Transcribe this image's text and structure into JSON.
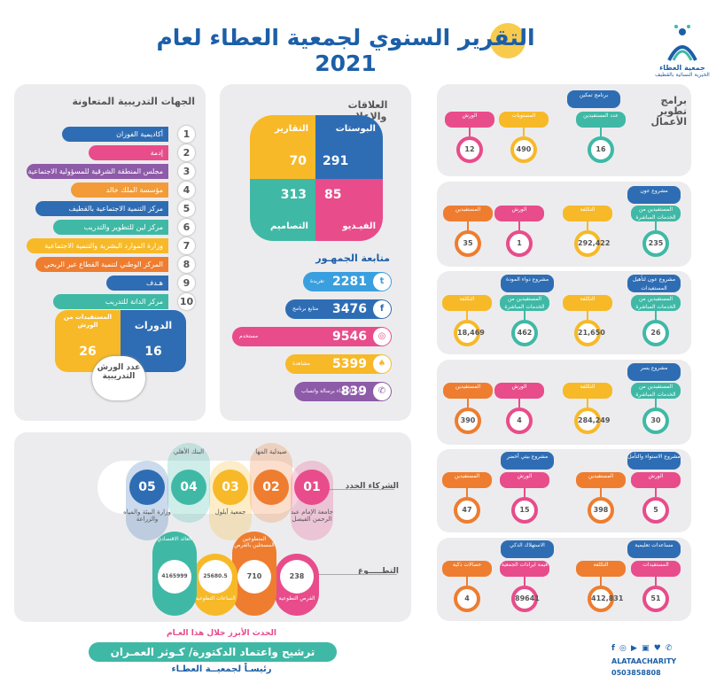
{
  "title": "التقرير السنوي لجمعية العطاء لعام 2021",
  "logo": {
    "name": "جمعية العطاء",
    "sub": "الخيرية النسائية بالقطيف"
  },
  "partners_panel": {
    "title": "الجهات التدريبية  المتعاونة",
    "items": [
      {
        "n": "1",
        "label": "أكاديمية الفوزان",
        "color": "#2e6db4"
      },
      {
        "n": "2",
        "label": "إدمة",
        "color": "#e84c8b"
      },
      {
        "n": "3",
        "label": "مجلس المنطقة الشرقية للمسؤولية الاجتماعية",
        "color": "#8e5ba8"
      },
      {
        "n": "4",
        "label": "مؤسسة الملك خالد",
        "color": "#f29b38"
      },
      {
        "n": "5",
        "label": "مركز التنمية الاجتماعية بالقطيف",
        "color": "#2e6db4"
      },
      {
        "n": "6",
        "label": "مركز لين للتطوير والتدريب",
        "color": "#3fb9a6"
      },
      {
        "n": "7",
        "label": "وزارة الموارد البشرية والتنمية الاجتماعية",
        "color": "#f7b928"
      },
      {
        "n": "8",
        "label": "المركز الوطني لتنمية القطاع غير الربحي",
        "color": "#ee7d30"
      },
      {
        "n": "9",
        "label": "هـدف",
        "color": "#2e6db4"
      },
      {
        "n": "10",
        "label": "مركز الدانة للتدريب",
        "color": "#3fb9a6"
      }
    ]
  },
  "courses": {
    "courses_label": "الدورات",
    "courses_value": "16",
    "workshops_beneficiaries_label": "المستفيدات من الورش",
    "workshops_beneficiaries_value": "26",
    "workshops_label": "عدد الورش التدريبية"
  },
  "media": {
    "title": "العلاقات والإعلام",
    "posts_label": "البوستات",
    "posts": "291",
    "reports_label": "التقارير",
    "reports": "70",
    "designs_label": "التصاميم",
    "designs": "313",
    "video_label": "الفيـديو",
    "video": "85"
  },
  "audience": {
    "title": "متابعة الجمهـور",
    "items": [
      {
        "value": "2281",
        "sub": "تغريدة",
        "icon": "twitter-icon",
        "glyph": "t",
        "color": "#3a9fde"
      },
      {
        "value": "3476",
        "sub": "متابع برنامج",
        "icon": "facebook-icon",
        "glyph": "f",
        "color": "#2e6db4"
      },
      {
        "value": "9546",
        "sub": "مستخدم",
        "icon": "instagram-icon",
        "glyph": "◎",
        "color": "#e84c8b"
      },
      {
        "value": "5399",
        "sub": "مشاهدة",
        "icon": "snapchat-icon",
        "glyph": "♠",
        "color": "#f7b928"
      },
      {
        "value": "839",
        "sub": "عدد الأعضاء برسالة واتساب",
        "icon": "whatsapp-icon",
        "glyph": "✆",
        "color": "#8e5ba8"
      }
    ]
  },
  "programs": {
    "title": "برامج تطوير الأعمال",
    "tamkeen": {
      "name": "برنامج تمكين",
      "items": [
        {
          "label": "عدد المستفيدين",
          "value": "16",
          "color": "#3fb9a6"
        },
        {
          "label": "المستويات",
          "value": "490",
          "color": "#f7b928"
        },
        {
          "label": "الورش",
          "value": "12",
          "color": "#e84c8b"
        }
      ]
    },
    "awn": {
      "name": "مشروع عون",
      "items": [
        {
          "label": "المستفيدين من الخدمات المباشرة",
          "value": "235",
          "color": "#3fb9a6"
        },
        {
          "label": "التكلفة",
          "value": "292,422",
          "color": "#f7b928"
        },
        {
          "label": "الورش",
          "value": "1",
          "color": "#e84c8b"
        },
        {
          "label": "المستفيدين",
          "value": "35",
          "color": "#ee7d30"
        }
      ]
    },
    "awn_rehab": {
      "name": "مشروع عون لتأهيل المستفيدات",
      "items": [
        {
          "label": "المستفيدين من الخدمات المباشرة",
          "value": "26",
          "color": "#3fb9a6"
        },
        {
          "label": "التكلفة",
          "value": "21,650",
          "color": "#f7b928"
        }
      ]
    },
    "dawa": {
      "name": "مشروع دواء المودة",
      "items": [
        {
          "label": "المستفيدين من الخدمات المباشرة",
          "value": "462",
          "color": "#3fb9a6"
        },
        {
          "label": "التكلفة",
          "value": "18,469",
          "color": "#f7b928"
        }
      ]
    },
    "yosr": {
      "name": "مشروع يسر",
      "items": [
        {
          "label": "المستفيدين من الخدمات المباشرة",
          "value": "30",
          "color": "#3fb9a6"
        },
        {
          "label": "التكلفة",
          "value": "284,249",
          "color": "#f7b928"
        },
        {
          "label": "الورش",
          "value": "4",
          "color": "#e84c8b"
        },
        {
          "label": "المستفيدين",
          "value": "390",
          "color": "#ee7d30"
        }
      ]
    },
    "istiwa": {
      "name": "مشروع الاستواء والتأمل",
      "items": [
        {
          "label": "الورش",
          "value": "5",
          "color": "#e84c8b"
        },
        {
          "label": "المستفيدين",
          "value": "398",
          "color": "#ee7d30"
        }
      ]
    },
    "green": {
      "name": "مشروع بيتي أخضر",
      "items": [
        {
          "label": "الورش",
          "value": "15",
          "color": "#e84c8b"
        },
        {
          "label": "المستفيدين",
          "value": "47",
          "color": "#ee7d30"
        }
      ]
    },
    "edu": {
      "name": "مساعدات تعليمية",
      "items": [
        {
          "label": "المستفيدات",
          "value": "51",
          "color": "#e84c8b"
        },
        {
          "label": "التكلفة",
          "value": "412,831",
          "color": "#ee7d30"
        }
      ]
    },
    "smart": {
      "name": "الاستهلاك الذكي",
      "items": [
        {
          "label": "قيمة ايرادات الجمعية",
          "value": "89641",
          "color": "#e84c8b"
        },
        {
          "label": "حصالات ذكية",
          "value": "4",
          "color": "#ee7d30"
        }
      ]
    }
  },
  "new_partners": {
    "label": "الشركاء الجدد",
    "items": [
      {
        "n": "01",
        "label": "جامعة الإمام عبد الرحمن الفيصل",
        "color": "#e84c8b"
      },
      {
        "n": "02",
        "label": "صيدلية المها",
        "color": "#ee7d30"
      },
      {
        "n": "03",
        "label": "جمعية آيلول",
        "color": "#f7b928"
      },
      {
        "n": "04",
        "label": "البنك الأهلي",
        "color": "#3fb9a6"
      },
      {
        "n": "05",
        "label": "وزارة البيئة والمياه والزراعة",
        "color": "#2e6db4"
      }
    ]
  },
  "volunteer": {
    "label": "التطـــــوع",
    "items": [
      {
        "label": "الفرص التطوعية",
        "value": "238",
        "color": "#e84c8b"
      },
      {
        "label": "المتطوعين المسجلين بالفرص",
        "value": "710",
        "color": "#ee7d30"
      },
      {
        "label": "الساعات التطوعية",
        "value": "25680.5",
        "color": "#f7b928"
      },
      {
        "label": "العائد الاقتصادي",
        "value": "4165999",
        "color": "#3fb9a6"
      }
    ]
  },
  "highlight": {
    "lead": "الحدث الأبرز خلال هذا العـام",
    "main": "ترشيح واعتماد الدكتورة/ كـوثر العمـران",
    "sub": "رئيسـاً لجمعيــة العطـاء"
  },
  "contact": {
    "handle": "ALATAACHARITY",
    "phone": "0503858808"
  }
}
